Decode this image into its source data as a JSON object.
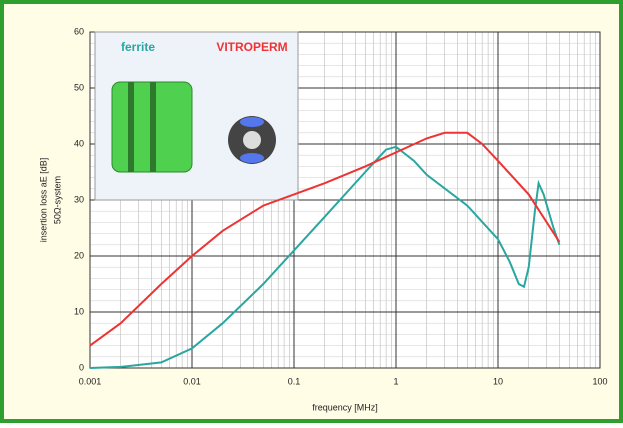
{
  "chart_data": {
    "type": "line",
    "x_label": "frequency [MHz]",
    "y_label": "insertion loss aE [dB]",
    "y_label2": "50Ω-system",
    "xlog": true,
    "grid": true,
    "minor_grid": true,
    "xlim": [
      0.001,
      100
    ],
    "xticks": [
      0.001,
      0.01,
      0.1,
      1,
      10,
      100
    ],
    "ylim": [
      0,
      60
    ],
    "yticks": [
      0,
      10,
      20,
      30,
      40,
      50,
      60
    ],
    "series": [
      {
        "name": "ferrite",
        "color": "#2aa6a0",
        "x": [
          0.001,
          0.002,
          0.005,
          0.01,
          0.02,
          0.05,
          0.1,
          0.2,
          0.5,
          0.8,
          1,
          1.5,
          2,
          5,
          10,
          13,
          16,
          18,
          20,
          23,
          25,
          28,
          35,
          40
        ],
        "values": [
          0,
          0.2,
          1,
          3.5,
          8,
          15,
          21,
          27,
          35,
          39,
          39.5,
          37,
          34.5,
          29,
          23,
          19,
          15,
          14.5,
          18,
          28,
          33,
          31,
          25,
          22
        ]
      },
      {
        "name": "VITROPERM",
        "color": "#ee3333",
        "x": [
          0.001,
          0.002,
          0.005,
          0.01,
          0.02,
          0.05,
          0.1,
          0.2,
          0.5,
          1,
          2,
          3,
          5,
          7,
          10,
          20,
          40
        ],
        "values": [
          4,
          8,
          15,
          20,
          24.5,
          29,
          31,
          33,
          36,
          38.5,
          41,
          42,
          42,
          40,
          37,
          31,
          22.5
        ]
      }
    ]
  }
}
